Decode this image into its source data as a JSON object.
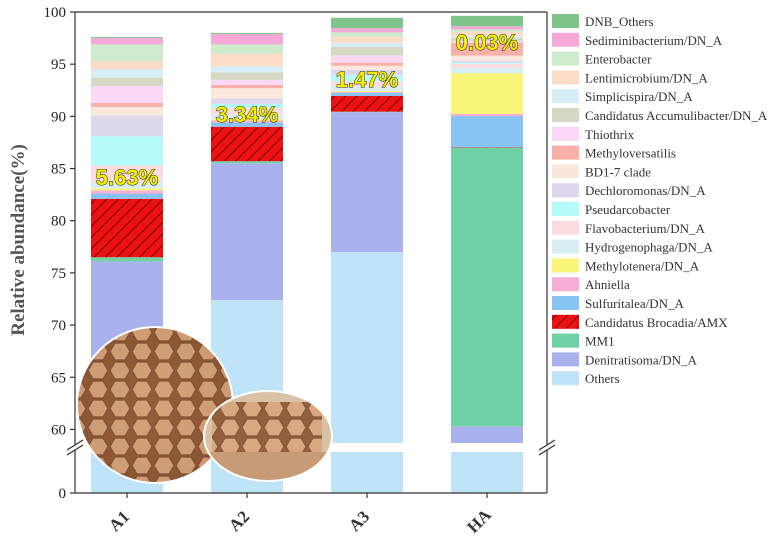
{
  "chart_data": {
    "type": "bar",
    "stacked": true,
    "ylabel": "Relative abundance(%)",
    "y_ticks_upper": [
      60,
      65,
      70,
      75,
      80,
      85,
      90,
      95,
      100
    ],
    "y_tick_lower": 0,
    "axis_break": true,
    "categories": [
      "A1",
      "A2",
      "A3",
      "HA"
    ],
    "series": [
      {
        "name": "Others",
        "color": "#bfe3f7",
        "values": [
          66.0,
          72.4,
          77.0,
          0.0
        ]
      },
      {
        "name": "Denitratisoma/DN_A",
        "color": "#aab2ee",
        "values": [
          10.1,
          13.1,
          13.4,
          60.3
        ]
      },
      {
        "name": "MM1",
        "color": "#6fd1a6",
        "values": [
          0.4,
          0.2,
          0.05,
          26.7
        ]
      },
      {
        "name": "Candidatus Brocadia/AMX",
        "color": "#ee1111",
        "values": [
          5.6,
          3.3,
          1.5,
          0.03
        ]
      },
      {
        "name": "Sulfuritalea/DN_A",
        "color": "#88c4f3",
        "values": [
          0.5,
          0.4,
          0.3,
          3.0
        ]
      },
      {
        "name": "Ahniella",
        "color": "#f7aed6",
        "values": [
          0.3,
          0.2,
          0.1,
          0.2
        ]
      },
      {
        "name": "Methylotenera/DN_A",
        "color": "#faf57a",
        "values": [
          0.2,
          0.1,
          0.1,
          3.9
        ]
      },
      {
        "name": "Hydrogenophaga/DN_A",
        "color": "#d7eef5",
        "values": [
          0.6,
          0.5,
          0.4,
          0.5
        ]
      },
      {
        "name": "Flavobacterium/DN_A",
        "color": "#fbdde0",
        "values": [
          1.6,
          0.6,
          0.5,
          0.4
        ]
      },
      {
        "name": "Pseudarcobacter",
        "color": "#b6fbfb",
        "values": [
          2.8,
          0.4,
          0.6,
          0.1
        ]
      },
      {
        "name": "Dechloromonas/DN_A",
        "color": "#ddd6ec",
        "values": [
          2.0,
          0.5,
          0.5,
          0.2
        ]
      },
      {
        "name": "BD1-7 clade",
        "color": "#fbe8dc",
        "values": [
          0.8,
          1.0,
          0.4,
          0.5
        ]
      },
      {
        "name": "Methyloversatilis",
        "color": "#f8b0a8",
        "values": [
          0.4,
          0.3,
          0.3,
          1.2
        ]
      },
      {
        "name": "Thiothrix",
        "color": "#fbd8f7",
        "values": [
          1.6,
          0.5,
          0.7,
          0.2
        ]
      },
      {
        "name": "Candidatus Accumulibacter/DN_A",
        "color": "#d6d8c4",
        "values": [
          0.8,
          0.7,
          0.8,
          0.3
        ]
      },
      {
        "name": "Simplicispira/DN_A",
        "color": "#d6eef5",
        "values": [
          0.8,
          0.6,
          0.4,
          0.2
        ]
      },
      {
        "name": "Lentimicrobium/DN_A",
        "color": "#fbdcc6",
        "values": [
          0.8,
          1.2,
          0.6,
          0.4
        ]
      },
      {
        "name": "Enterobacter",
        "color": "#cdebcd",
        "values": [
          1.6,
          0.9,
          0.4,
          0.2
        ]
      },
      {
        "name": "Sediminibacterium/DN_A",
        "color": "#f6a9d6",
        "values": [
          0.6,
          1.0,
          0.4,
          0.3
        ]
      },
      {
        "name": "DNB_Others",
        "color": "#7fc58a",
        "values": [
          0.1,
          0.1,
          1.0,
          1.0
        ]
      }
    ],
    "lower_segment_series": "Others",
    "annotations": [
      {
        "category": "A1",
        "text": "5.63%"
      },
      {
        "category": "A2",
        "text": "3.34%"
      },
      {
        "category": "A3",
        "text": "1.47%"
      },
      {
        "category": "HA",
        "text": "0.03%"
      }
    ],
    "legend_position": "right",
    "grid": false,
    "inset_photo": "honeycomb carrier photograph"
  }
}
